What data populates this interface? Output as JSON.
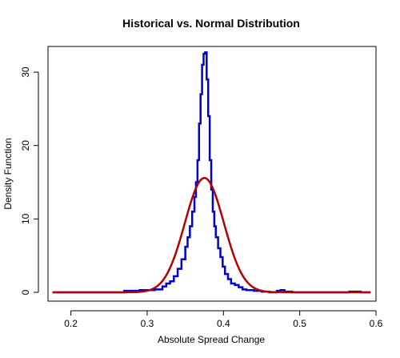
{
  "chart_data": {
    "type": "line",
    "title": "Historical vs. Normal Distribution",
    "xlabel": "Absolute Spread Change",
    "ylabel": "Density Function",
    "xlim": [
      0.17,
      0.6
    ],
    "ylim": [
      -1.2,
      33.5
    ],
    "xticks": [
      0.2,
      0.3,
      0.4,
      0.5,
      0.6
    ],
    "yticks": [
      0,
      10,
      20,
      30
    ],
    "grid": false,
    "legend": "none",
    "series": [
      {
        "kind": "step",
        "color": "#0000cc",
        "x": [
          0.176,
          0.19,
          0.2,
          0.22,
          0.24,
          0.26,
          0.27,
          0.28,
          0.29,
          0.3,
          0.31,
          0.32,
          0.325,
          0.33,
          0.335,
          0.34,
          0.345,
          0.35,
          0.353,
          0.356,
          0.359,
          0.362,
          0.364,
          0.366,
          0.368,
          0.37,
          0.372,
          0.374,
          0.376,
          0.378,
          0.38,
          0.382,
          0.384,
          0.386,
          0.388,
          0.39,
          0.393,
          0.396,
          0.399,
          0.402,
          0.406,
          0.41,
          0.415,
          0.42,
          0.425,
          0.43,
          0.44,
          0.45,
          0.46,
          0.47,
          0.475,
          0.48,
          0.49,
          0.5,
          0.52,
          0.54,
          0.56,
          0.565,
          0.57,
          0.58,
          0.593
        ],
        "y": [
          0,
          0,
          0,
          0,
          0,
          0,
          0.2,
          0.2,
          0.3,
          0.3,
          0.4,
          0.8,
          1.2,
          1.5,
          2.2,
          3.2,
          4.5,
          6.2,
          7.5,
          9,
          11,
          13,
          15,
          18,
          23,
          27,
          31,
          32.5,
          32.7,
          29,
          24,
          18,
          14,
          11,
          9,
          7.5,
          6,
          4.8,
          3.5,
          2.5,
          1.8,
          1.2,
          1,
          0.7,
          0.4,
          0.3,
          0.2,
          0.1,
          0,
          0.2,
          0.3,
          0.1,
          0,
          0,
          0,
          0,
          0,
          0.1,
          0.1,
          0,
          0
        ]
      },
      {
        "kind": "normal-curve",
        "color": "#b30000",
        "mean": 0.375,
        "sd": 0.0256,
        "x_range": [
          0.176,
          0.593
        ]
      }
    ]
  }
}
